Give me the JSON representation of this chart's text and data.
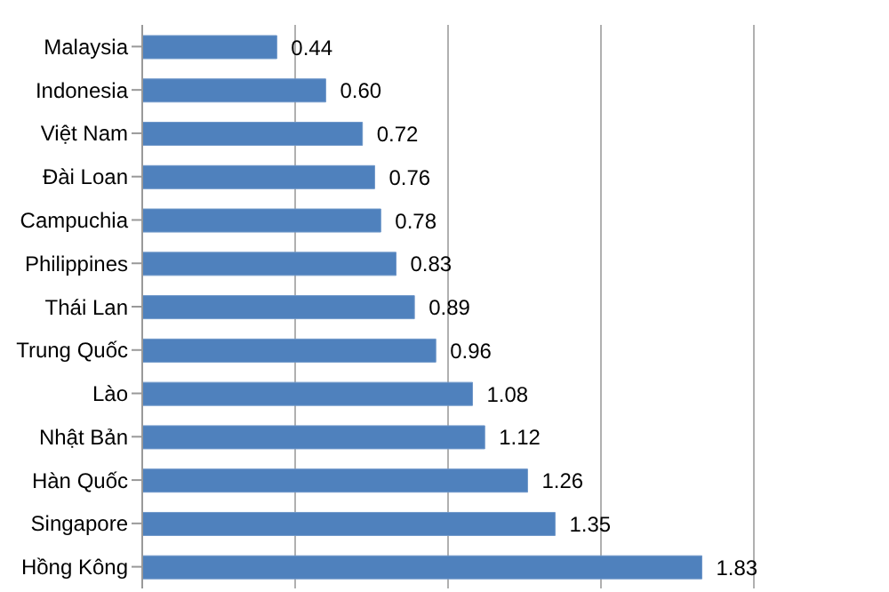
{
  "chart_data": {
    "type": "bar",
    "orientation": "horizontal",
    "categories": [
      "Malaysia",
      "Indonesia",
      "Việt Nam",
      "Đài Loan",
      "Campuchia",
      "Philippines",
      "Thái Lan",
      "Trung Quốc",
      "Lào",
      "Nhật Bản",
      "Hàn Quốc",
      "Singapore",
      "Hồng Kông"
    ],
    "values": [
      0.44,
      0.6,
      0.72,
      0.76,
      0.78,
      0.83,
      0.89,
      0.96,
      1.08,
      1.12,
      1.26,
      1.35,
      1.83
    ],
    "value_labels": [
      "0.44",
      "0.60",
      "0.72",
      "0.76",
      "0.78",
      "0.83",
      "0.89",
      "0.96",
      "1.08",
      "1.12",
      "1.26",
      "1.35",
      "1.83"
    ],
    "color": "#4f81bd",
    "xlim": [
      0,
      2
    ],
    "xticks": [
      {
        "value": 0,
        "label": null
      },
      {
        "value": 0.5,
        "label": null
      },
      {
        "value": 1,
        "label": null
      },
      {
        "value": 1.5,
        "label": null
      },
      {
        "value": 2,
        "label": null
      }
    ],
    "grid": "x",
    "tick_labels": "y"
  }
}
